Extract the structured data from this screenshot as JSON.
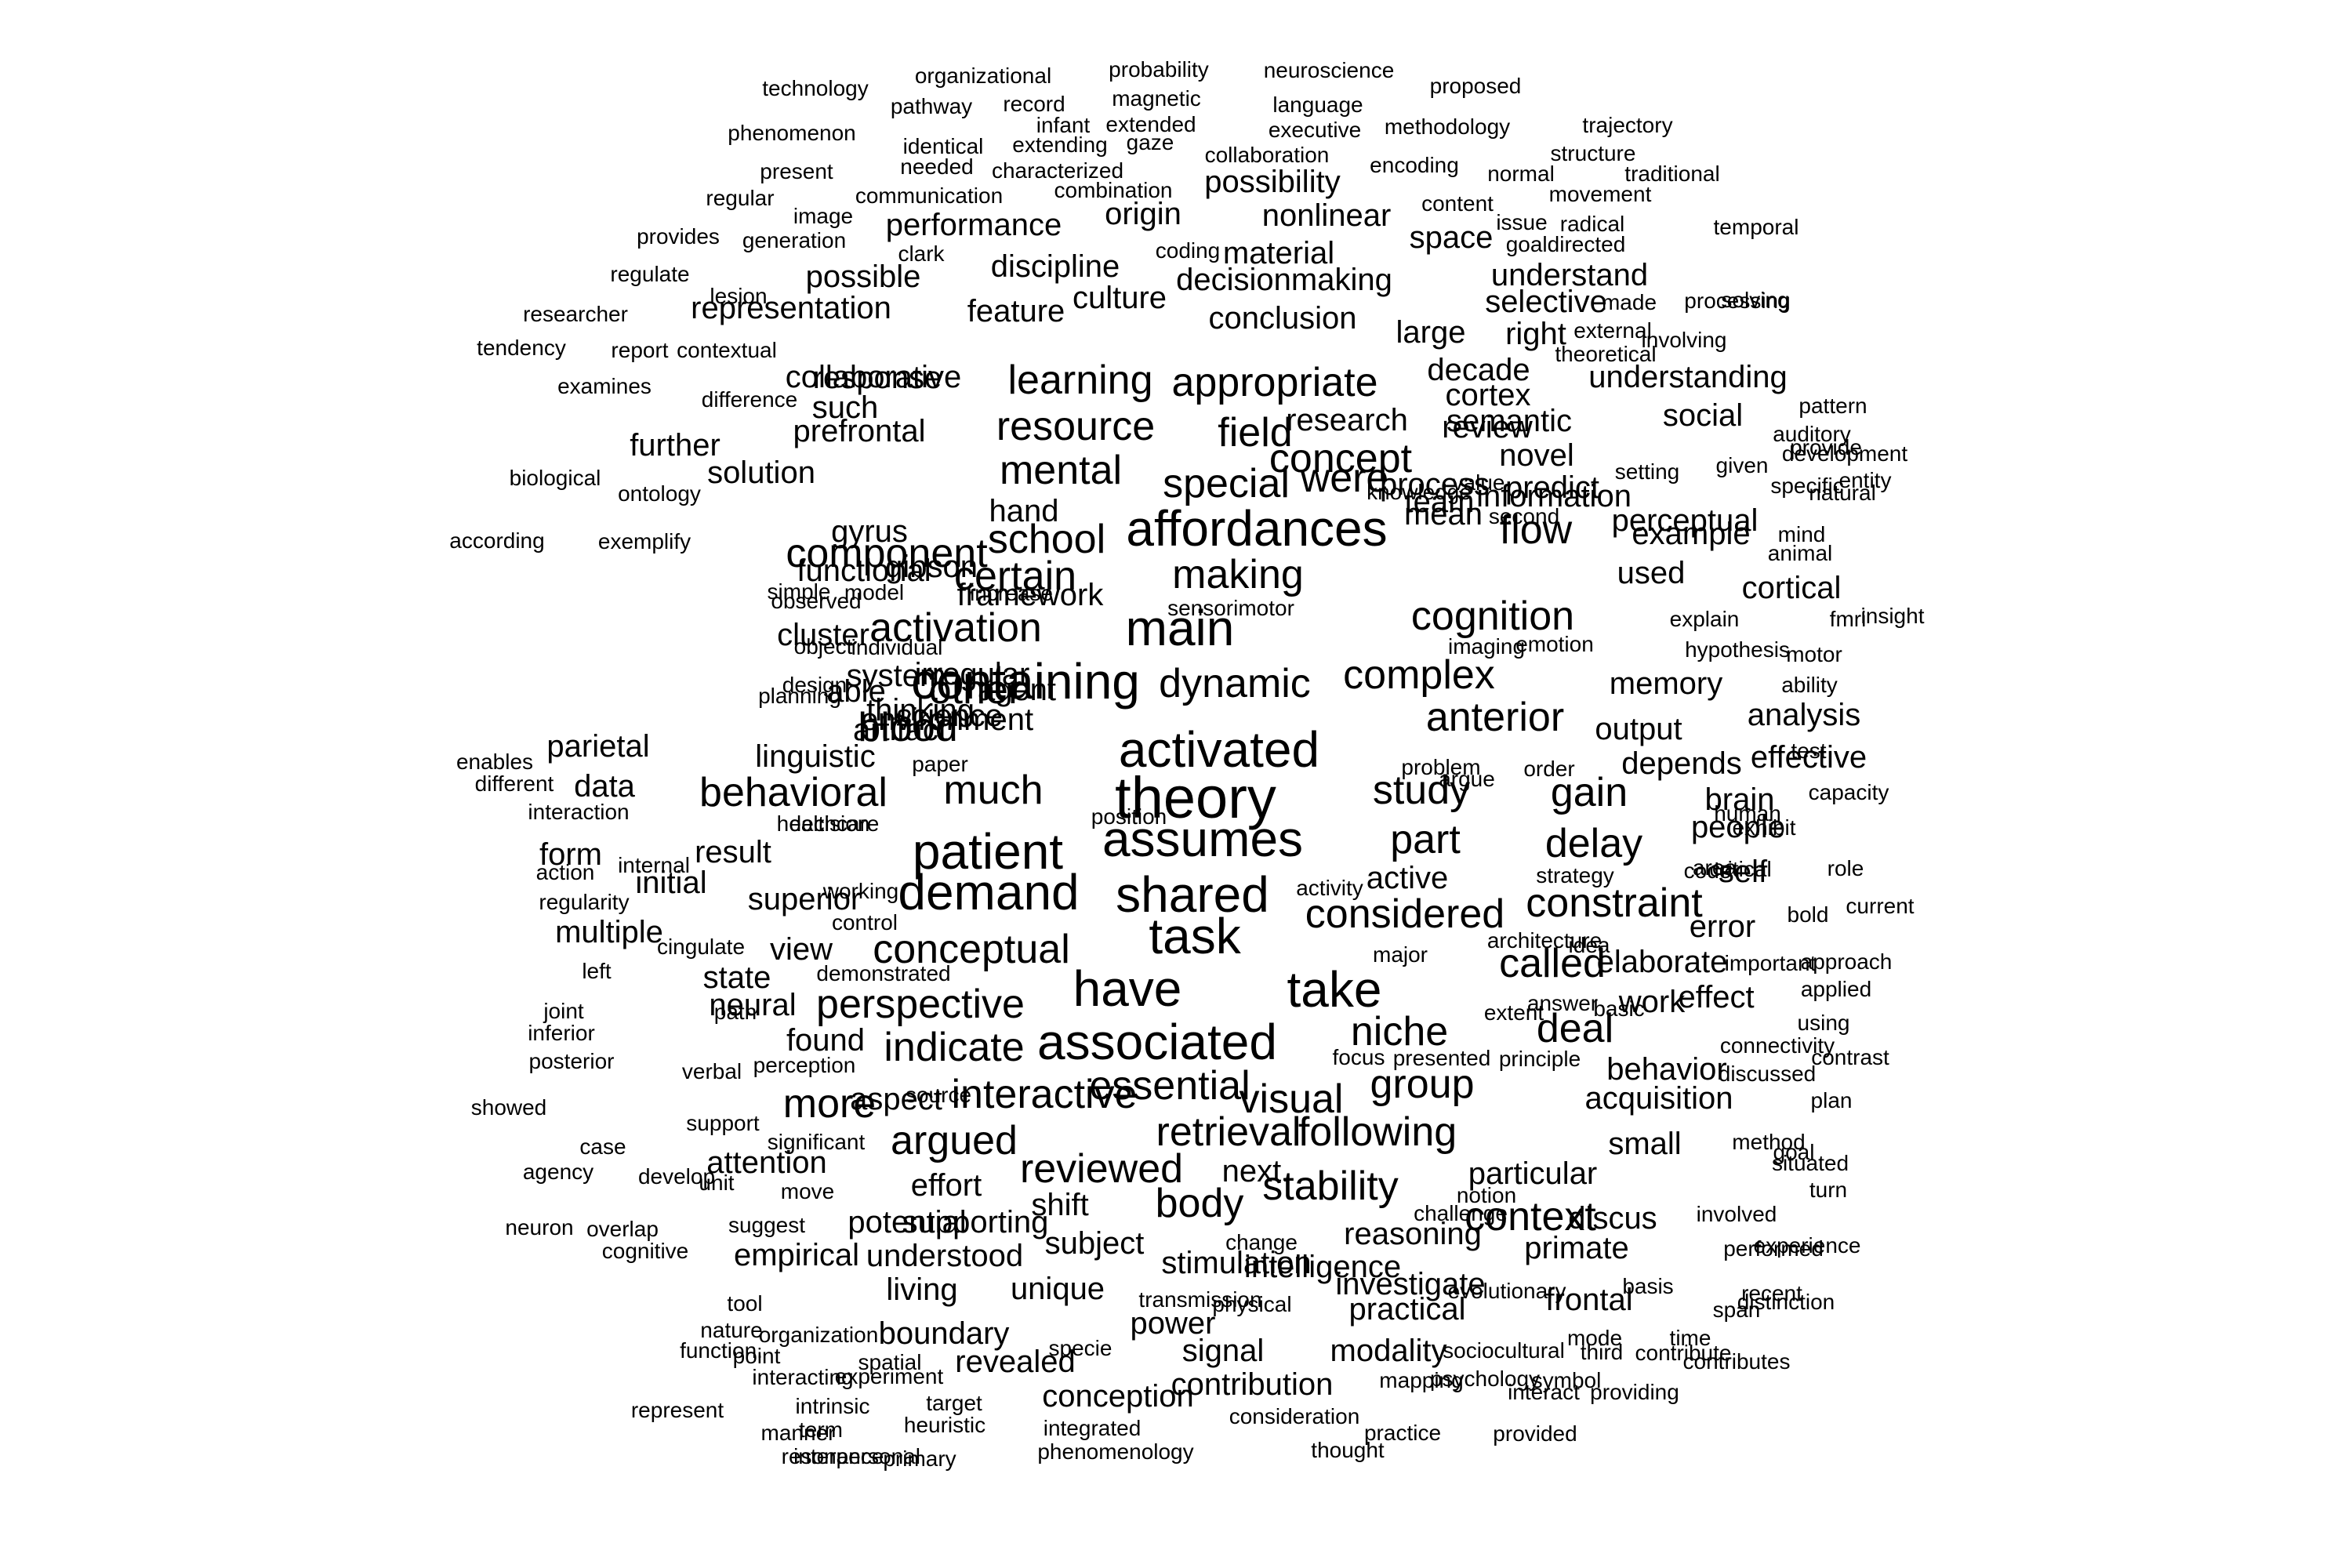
{
  "cloud": {
    "text_color": "#000000",
    "background": "#ffffff",
    "words": [
      "technology",
      "organizational",
      "probability",
      "neuroscience",
      "proposed",
      "pathway",
      "record",
      "magnetic",
      "language",
      "infant",
      "extended",
      "phenomenon",
      "executive",
      "methodology",
      "trajectory",
      "identical",
      "extending",
      "gaze",
      "collaboration",
      "structure",
      "present",
      "needed",
      "characterized",
      "encoding",
      "normal",
      "traditional",
      "possibility",
      "regular",
      "communication",
      "combination",
      "image",
      "origin",
      "content",
      "movement",
      "nonlinear",
      "performance",
      "generation",
      "provides",
      "issue",
      "radical",
      "temporal",
      "space",
      "goaldirected",
      "coding",
      "clark",
      "material",
      "lesion",
      "regulate",
      "discipline",
      "understand",
      "solving",
      "possible",
      "culture",
      "decisionmaking",
      "made",
      "processing",
      "selective",
      "researcher",
      "representation",
      "feature",
      "conclusion",
      "large",
      "right",
      "external",
      "involving",
      "tendency",
      "report",
      "contextual",
      "learning",
      "appropriate",
      "theoretical",
      "decade",
      "collaborative",
      "examines",
      "difference",
      "such",
      "response",
      "research",
      "understanding",
      "cortex",
      "pattern",
      "resource",
      "field",
      "semantic",
      "social",
      "prefrontal",
      "concept",
      "review",
      "auditory",
      "further",
      "provide",
      "novel",
      "solution",
      "special",
      "mental",
      "given",
      "development",
      "information",
      "natural",
      "were",
      "setting",
      "predict",
      "team",
      "biological",
      "ontology",
      "entity",
      "perceptual",
      "mean",
      "value",
      "specific",
      "second",
      "knowledge",
      "hand",
      "process",
      "gyrus",
      "school",
      "affordances",
      "flow",
      "example",
      "according",
      "exemplify",
      "mind",
      "animal",
      "component",
      "functional",
      "gibson",
      "certain",
      "making",
      "used",
      "simple",
      "cortical",
      "insight",
      "model",
      "framework",
      "observed",
      "increase",
      "sensorimotor",
      "cognition",
      "explain",
      "fmri",
      "activation",
      "main",
      "cluster",
      "object",
      "imaging",
      "emotion",
      "hypothesis",
      "motor",
      "individual",
      "system",
      "irregular",
      "dynamic",
      "containing",
      "complex",
      "other",
      "memory",
      "ability",
      "able",
      "planning",
      "design",
      "agent",
      "analysis",
      "environment",
      "test",
      "science",
      "thinking",
      "artifact",
      "anterior",
      "output",
      "blood",
      "activated",
      "enables",
      "parietal",
      "effective",
      "linguistic",
      "paper",
      "argue",
      "different",
      "problem",
      "order",
      "depends",
      "data",
      "capacity",
      "behavioral",
      "much",
      "study",
      "theory",
      "gain",
      "brain",
      "position",
      "human",
      "interaction",
      "healthcare",
      "decision",
      "exhibit",
      "people",
      "assumes",
      "form",
      "internal",
      "result",
      "delay",
      "part",
      "patient",
      "action",
      "code",
      "area",
      "critical",
      "self",
      "strategy",
      "working",
      "role",
      "superior",
      "regularity",
      "initial",
      "demand",
      "shared",
      "activity",
      "active",
      "bold",
      "current",
      "considered",
      "constraint",
      "control",
      "multiple",
      "error",
      "cingulate",
      "view",
      "conceptual",
      "task",
      "major",
      "architecture",
      "idea",
      "left",
      "state",
      "demonstrated",
      "called",
      "elaborate",
      "important",
      "approach",
      "have",
      "take",
      "applied",
      "neural",
      "perspective",
      "work",
      "effect",
      "joint",
      "answer",
      "path",
      "extent",
      "basic",
      "inferior",
      "using",
      "found",
      "associated",
      "deal",
      "niche",
      "indicate",
      "connectivity",
      "posterior",
      "focus",
      "presented",
      "principle",
      "contrast",
      "verbal",
      "perception",
      "behavior",
      "discussed",
      "essential",
      "group",
      "source",
      "plan",
      "aspect",
      "more",
      "acquisition",
      "showed",
      "support",
      "interactive",
      "visual",
      "retrieval",
      "small",
      "goal",
      "following",
      "method",
      "case",
      "significant",
      "argued",
      "situated",
      "agency",
      "develop",
      "attention",
      "reviewed",
      "next.",
      "particular",
      "unit",
      "body",
      "stability",
      "move",
      "turn",
      "notion",
      "effort",
      "challenge",
      "shift",
      "neuron",
      "discus",
      "context",
      "potential",
      "supporting",
      "suggest",
      "overlap",
      "involved",
      "change",
      "reasoning",
      "cognitive",
      "experience",
      "primate",
      "performed",
      "understood",
      "subject",
      "empirical",
      "stimulation",
      "intelligence",
      "basis",
      "living",
      "unique",
      "investigate",
      "recent",
      "frontal",
      "evolutionary",
      "physical",
      "transmission",
      "distinction",
      "practical",
      "tool",
      "span",
      "nature",
      "organization",
      "power",
      "boundary",
      "mode",
      "time",
      "specie",
      "function.",
      "point",
      "signal",
      "modality",
      "sociocultural",
      "third",
      "contribute",
      "contributes",
      "spatial",
      "revealed",
      "interacting",
      "psychology",
      "symbol",
      "mapping",
      "experiment",
      "contribution",
      "interact",
      "providing",
      "intrinsic",
      "conception",
      "represent",
      "term",
      "target",
      "consideration",
      "heuristic",
      "manner",
      "practice",
      "integrated",
      "provided",
      "resonance",
      "interpersonal",
      "phenomenology",
      "thought",
      "primary"
    ]
  }
}
